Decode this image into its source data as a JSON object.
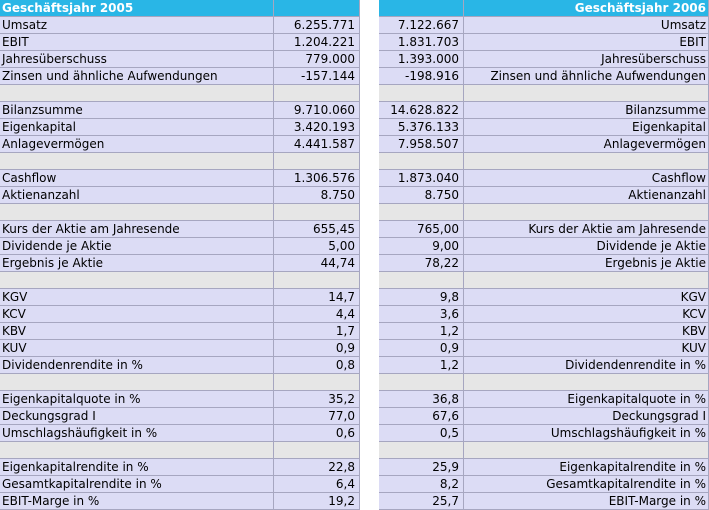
{
  "header": {
    "left_title": "Geschäftsjahr 2005",
    "right_title": "Geschäftsjahr 2006"
  },
  "rows": [
    {
      "type": "data",
      "label": "Umsatz",
      "v2005": "6.255.771",
      "v2006": "7.122.667"
    },
    {
      "type": "data",
      "label": "EBIT",
      "v2005": "1.204.221",
      "v2006": "1.831.703"
    },
    {
      "type": "data",
      "label": "Jahresüberschuss",
      "v2005": "779.000",
      "v2006": "1.393.000"
    },
    {
      "type": "data",
      "label": "Zinsen und ähnliche Aufwendungen",
      "v2005": "-157.144",
      "v2006": "-198.916"
    },
    {
      "type": "spacer"
    },
    {
      "type": "data",
      "label": "Bilanzsumme",
      "v2005": "9.710.060",
      "v2006": "14.628.822"
    },
    {
      "type": "data",
      "label": "Eigenkapital",
      "v2005": "3.420.193",
      "v2006": "5.376.133"
    },
    {
      "type": "data",
      "label": "Anlagevermögen",
      "v2005": "4.441.587",
      "v2006": "7.958.507"
    },
    {
      "type": "spacer"
    },
    {
      "type": "data",
      "label": "Cashflow",
      "v2005": "1.306.576",
      "v2006": "1.873.040"
    },
    {
      "type": "data",
      "label": "Aktienanzahl",
      "v2005": "8.750",
      "v2006": "8.750"
    },
    {
      "type": "spacer"
    },
    {
      "type": "data",
      "label": "Kurs der Aktie am Jahresende",
      "v2005": "655,45",
      "v2006": "765,00"
    },
    {
      "type": "data",
      "label": "Dividende je Aktie",
      "v2005": "5,00",
      "v2006": "9,00"
    },
    {
      "type": "data",
      "label": "Ergebnis je Aktie",
      "v2005": "44,74",
      "v2006": "78,22"
    },
    {
      "type": "spacer"
    },
    {
      "type": "data",
      "label": "KGV",
      "v2005": "14,7",
      "v2006": "9,8"
    },
    {
      "type": "data",
      "label": "KCV",
      "v2005": "4,4",
      "v2006": "3,6"
    },
    {
      "type": "data",
      "label": "KBV",
      "v2005": "1,7",
      "v2006": "1,2"
    },
    {
      "type": "data",
      "label": "KUV",
      "v2005": "0,9",
      "v2006": "0,9"
    },
    {
      "type": "data",
      "label": "Dividendenrendite in %",
      "v2005": "0,8",
      "v2006": "1,2"
    },
    {
      "type": "spacer"
    },
    {
      "type": "data",
      "label": "Eigenkapitalquote in %",
      "v2005": "35,2",
      "v2006": "36,8"
    },
    {
      "type": "data",
      "label": "Deckungsgrad I",
      "v2005": "77,0",
      "v2006": "67,6"
    },
    {
      "type": "data",
      "label": "Umschlagshäufigkeit in %",
      "v2005": "0,6",
      "v2006": "0,5"
    },
    {
      "type": "spacer"
    },
    {
      "type": "data",
      "label": "Eigenkapitalrendite in %",
      "v2005": "22,8",
      "v2006": "25,9"
    },
    {
      "type": "data",
      "label": "Gesamtkapitalrendite in %",
      "v2005": "6,4",
      "v2006": "8,2"
    },
    {
      "type": "data",
      "label": "EBIT-Marge in %",
      "v2005": "19,2",
      "v2006": "25,7"
    }
  ]
}
